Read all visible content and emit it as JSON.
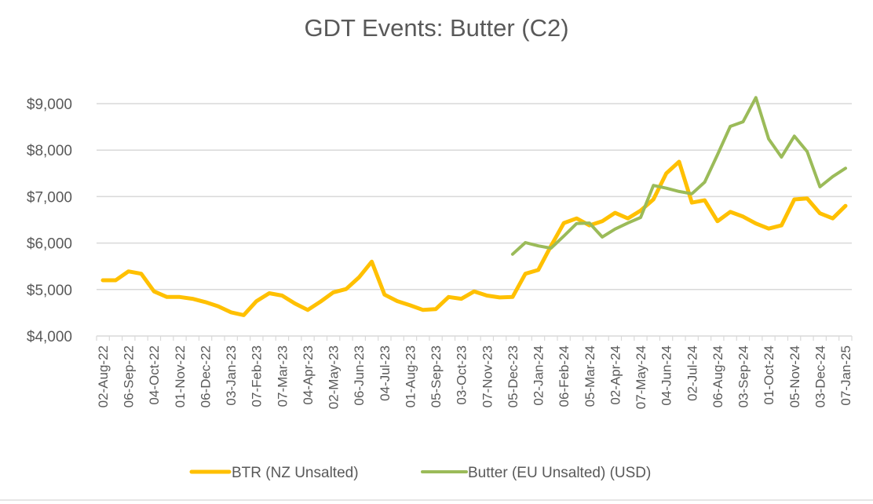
{
  "chart_data": {
    "type": "line",
    "title": "GDT Events: Butter (C2)",
    "xlabel": "",
    "ylabel": "",
    "ylim": [
      4000,
      9000
    ],
    "yticks": [
      4000,
      5000,
      6000,
      7000,
      8000,
      9000
    ],
    "ytick_labels": [
      "$4,000",
      "$5,000",
      "$6,000",
      "$7,000",
      "$8,000",
      "$9,000"
    ],
    "grid": true,
    "legend_position": "bottom",
    "x_tick_labels": [
      "02-Aug-22",
      "06-Sep-22",
      "04-Oct-22",
      "01-Nov-22",
      "06-Dec-22",
      "03-Jan-23",
      "07-Feb-23",
      "07-Mar-23",
      "04-Apr-23",
      "02-May-23",
      "06-Jun-23",
      "04-Jul-23",
      "01-Aug-23",
      "05-Sep-23",
      "03-Oct-23",
      "07-Nov-23",
      "05-Dec-23",
      "02-Jan-24",
      "06-Feb-24",
      "05-Mar-24",
      "02-Apr-24",
      "07-May-24",
      "04-Jun-24",
      "02-Jul-24",
      "06-Aug-24",
      "03-Sep-24",
      "01-Oct-24",
      "05-Nov-24",
      "03-Dec-24",
      "07-Jan-25"
    ],
    "point_count": 59,
    "series": [
      {
        "name": "BTR (NZ Unsalted)",
        "color": "#FFC000",
        "values": [
          5200,
          5200,
          5390,
          5340,
          4960,
          4840,
          4840,
          4800,
          4730,
          4640,
          4510,
          4450,
          4750,
          4920,
          4870,
          4700,
          4560,
          4740,
          4940,
          5010,
          5260,
          5600,
          4890,
          4750,
          4660,
          4560,
          4580,
          4840,
          4800,
          4960,
          4870,
          4830,
          4840,
          5340,
          5420,
          5940,
          6430,
          6530,
          6380,
          6470,
          6650,
          6530,
          6700,
          6940,
          7500,
          7750,
          6870,
          6920,
          6470,
          6670,
          6570,
          6420,
          6310,
          6380,
          6940,
          6960,
          6640,
          6530,
          6800
        ]
      },
      {
        "name": "Butter (EU Unsalted) (USD)",
        "color": "#9BBB59",
        "values": [
          null,
          null,
          null,
          null,
          null,
          null,
          null,
          null,
          null,
          null,
          null,
          null,
          null,
          null,
          null,
          null,
          null,
          null,
          null,
          null,
          null,
          null,
          null,
          null,
          null,
          null,
          null,
          null,
          null,
          null,
          null,
          null,
          5760,
          6010,
          5940,
          5890,
          6150,
          6420,
          6430,
          6130,
          6300,
          6430,
          6550,
          7240,
          7180,
          7110,
          7060,
          7310,
          7900,
          8510,
          8610,
          9130,
          8240,
          7850,
          8300,
          7970,
          7210,
          7430,
          7610
        ]
      }
    ]
  }
}
